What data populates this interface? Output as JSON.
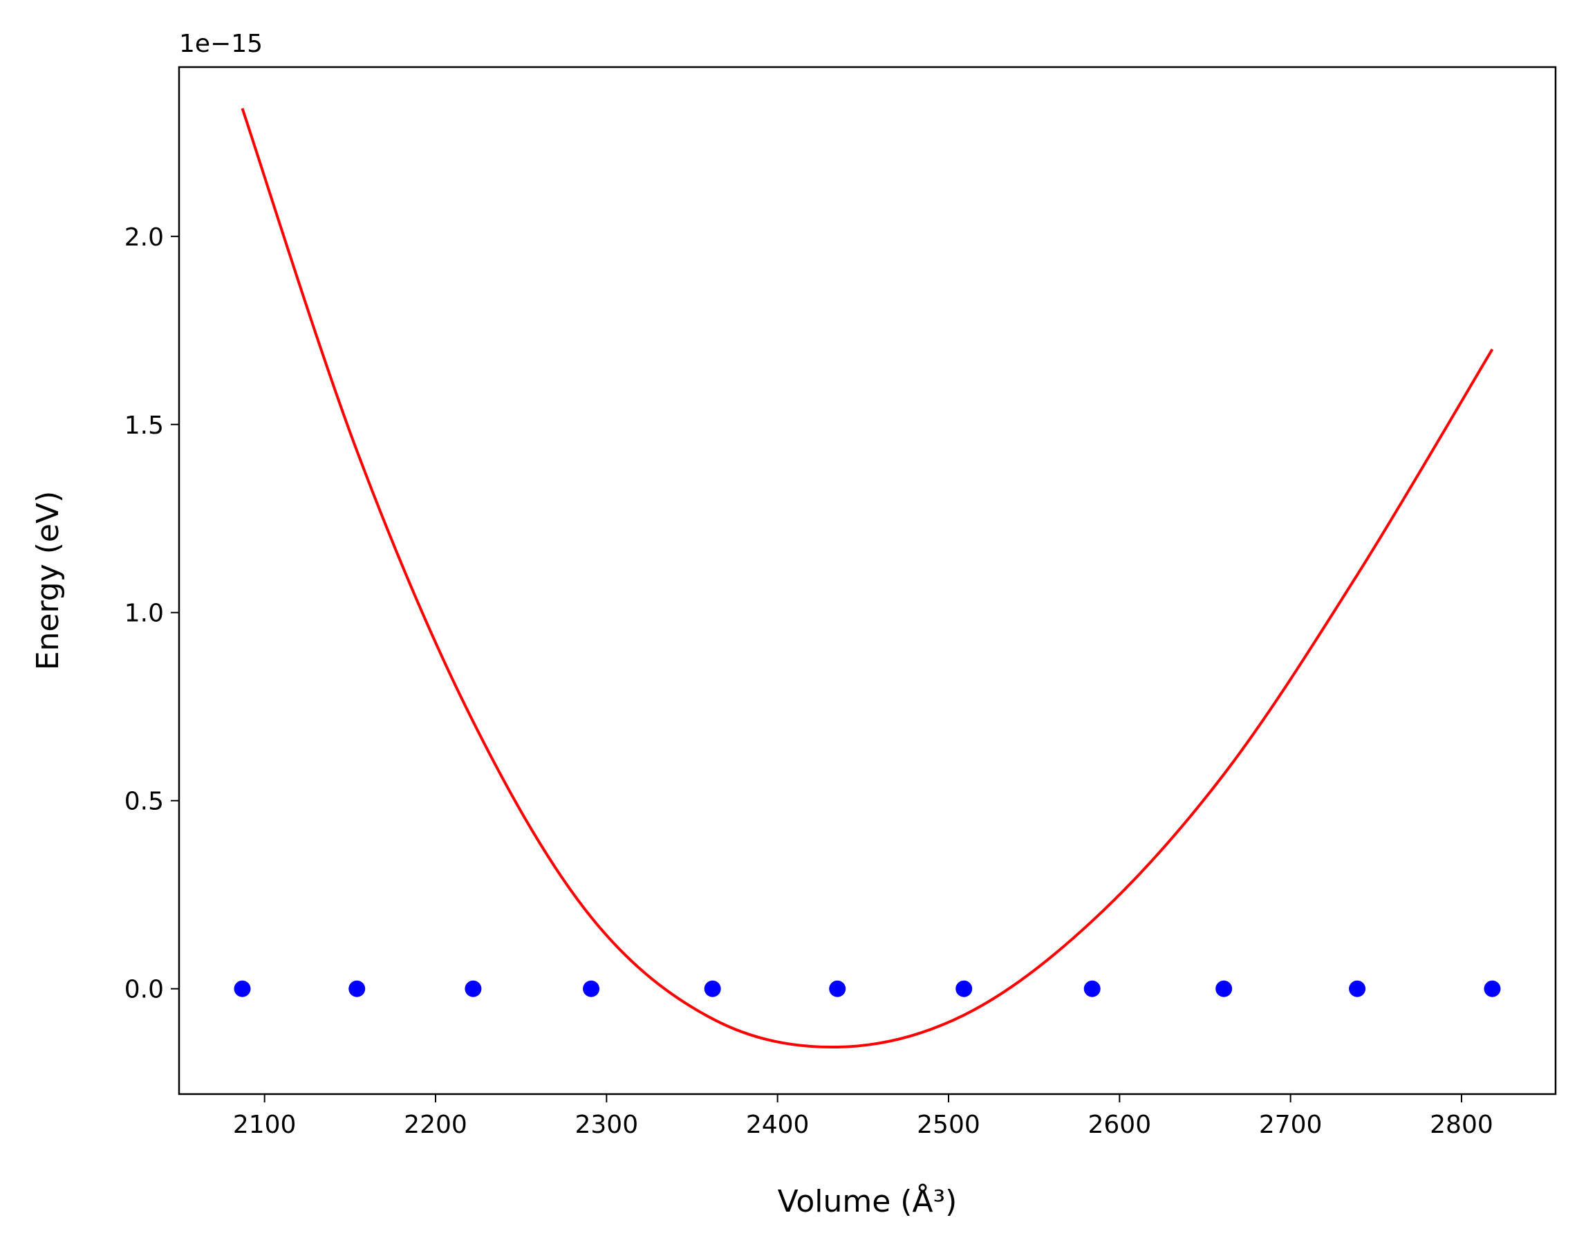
{
  "chart_data": {
    "type": "scatter",
    "title": "",
    "xlabel": "Volume (Å³)",
    "ylabel": "Energy (eV)",
    "y_offset_text": "1e−15",
    "xlim": [
      2050,
      2855
    ],
    "ylim": [
      -0.28,
      2.45
    ],
    "y_scale_factor": 1e-15,
    "grid": false,
    "legend": "none",
    "x_ticks": [
      2100,
      2200,
      2300,
      2400,
      2500,
      2600,
      2700,
      2800
    ],
    "x_tick_labels": [
      "2100",
      "2200",
      "2300",
      "2400",
      "2500",
      "2600",
      "2700",
      "2800"
    ],
    "y_ticks": [
      0.0,
      0.5,
      1.0,
      1.5,
      2.0
    ],
    "y_tick_labels": [
      "0.0",
      "0.5",
      "1.0",
      "1.5",
      "2.0"
    ],
    "series": [
      {
        "type": "scatter",
        "color": "#0000ff",
        "x": [
          2087,
          2154,
          2222,
          2291,
          2362,
          2435,
          2509,
          2584,
          2661,
          2739,
          2818
        ],
        "y": [
          0,
          0,
          0,
          0,
          0,
          0,
          0,
          0,
          0,
          0,
          0
        ]
      },
      {
        "type": "line",
        "color": "#ff0000",
        "x": [
          2087,
          2154,
          2222,
          2291,
          2362,
          2435,
          2509,
          2584,
          2661,
          2739,
          2818
        ],
        "y": [
          2.34,
          1.43,
          0.71,
          0.19,
          -0.08,
          -0.155,
          -0.07,
          0.18,
          0.57,
          1.1,
          1.7
        ]
      }
    ]
  }
}
